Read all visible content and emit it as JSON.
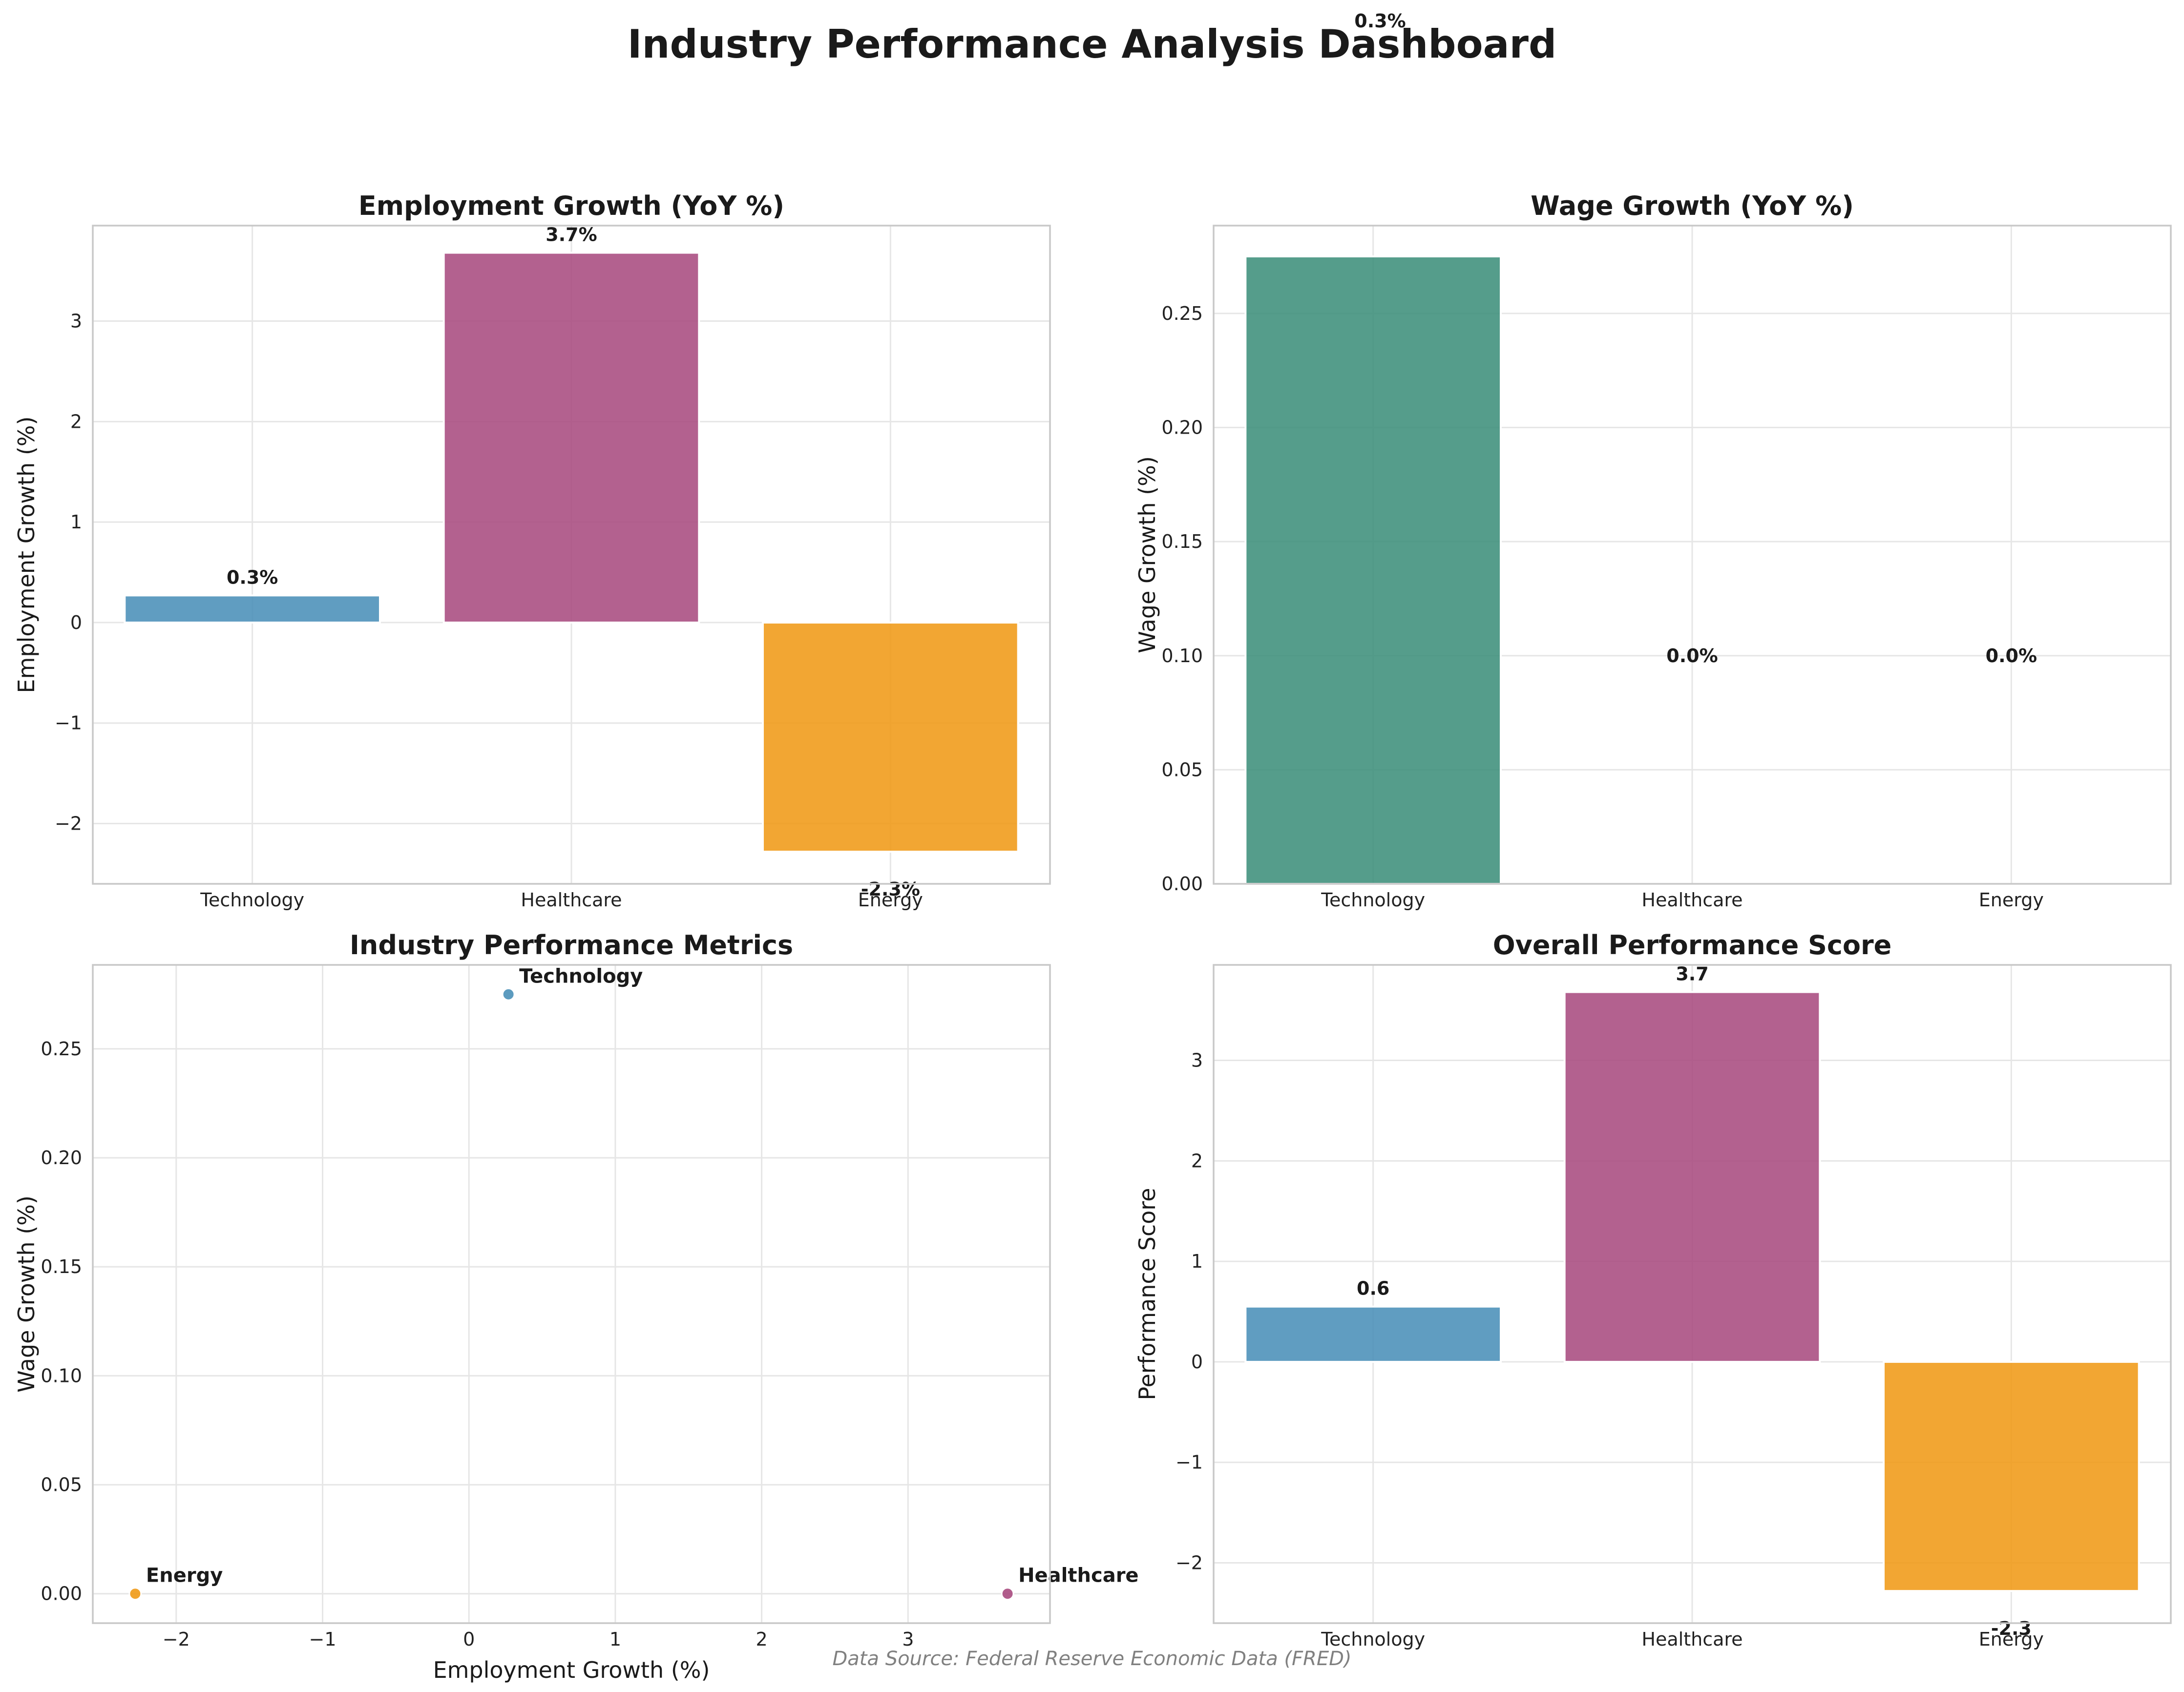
{
  "figure": {
    "title": "Industry Performance Analysis Dashboard",
    "source_note": "Data Source: Federal Reserve Economic Data (FRED)",
    "stray_label": "0.3%"
  },
  "colors": {
    "Technology": "#4a90b8",
    "Healthcare": "#a84b7f",
    "Energy": "#f09a17",
    "wage_bar": "#3e8f7b"
  },
  "chart_data": [
    {
      "id": "employment",
      "type": "bar",
      "title": "Employment Growth (YoY %)",
      "xlabel": "",
      "ylabel": "Employment Growth (%)",
      "categories": [
        "Technology",
        "Healthcare",
        "Energy"
      ],
      "values": [
        0.27,
        3.68,
        -2.28
      ],
      "value_labels": [
        "0.3%",
        "3.7%",
        "-2.3%"
      ],
      "ylim": [
        -2.6,
        3.95
      ],
      "yticks": [
        -2,
        -1,
        0,
        1,
        2,
        3
      ],
      "ytick_labels": [
        "−2",
        "−1",
        "0",
        "1",
        "2",
        "3"
      ],
      "grid": true
    },
    {
      "id": "wage",
      "type": "bar",
      "title": "Wage Growth (YoY %)",
      "xlabel": "",
      "ylabel": "Wage Growth (%)",
      "categories": [
        "Technology",
        "Healthcare",
        "Energy"
      ],
      "values": [
        0.275,
        0.0,
        0.0
      ],
      "value_labels": [
        "0.3%",
        "0.0%",
        "0.0%"
      ],
      "ylim": [
        0,
        0.2885
      ],
      "yticks": [
        0,
        0.05,
        0.1,
        0.15,
        0.2,
        0.25
      ],
      "ytick_labels": [
        "0.00",
        "0.05",
        "0.10",
        "0.15",
        "0.20",
        "0.25"
      ],
      "grid": true
    },
    {
      "id": "metrics",
      "type": "scatter",
      "title": "Industry Performance Metrics",
      "xlabel": "Employment Growth (%)",
      "ylabel": "Wage Growth (%)",
      "points": [
        {
          "label": "Technology",
          "x": 0.27,
          "y": 0.275
        },
        {
          "label": "Healthcare",
          "x": 3.68,
          "y": 0.0
        },
        {
          "label": "Energy",
          "x": -2.28,
          "y": 0.0
        }
      ],
      "xlim": [
        -2.57,
        3.97
      ],
      "ylim": [
        -0.0135,
        0.2885
      ],
      "xticks": [
        -2,
        -1,
        0,
        1,
        2,
        3
      ],
      "xtick_labels": [
        "−2",
        "−1",
        "0",
        "1",
        "2",
        "3"
      ],
      "yticks": [
        0,
        0.05,
        0.1,
        0.15,
        0.2,
        0.25
      ],
      "ytick_labels": [
        "0.00",
        "0.05",
        "0.10",
        "0.15",
        "0.20",
        "0.25"
      ],
      "grid": true
    },
    {
      "id": "score",
      "type": "bar",
      "title": "Overall Performance Score",
      "xlabel": "",
      "ylabel": "Performance Score",
      "categories": [
        "Technology",
        "Healthcare",
        "Energy"
      ],
      "values": [
        0.55,
        3.68,
        -2.28
      ],
      "value_labels": [
        "0.6",
        "3.7",
        "-2.3"
      ],
      "ylim": [
        -2.6,
        3.95
      ],
      "yticks": [
        -2,
        -1,
        0,
        1,
        2,
        3
      ],
      "ytick_labels": [
        "−2",
        "−1",
        "0",
        "1",
        "2",
        "3"
      ],
      "grid": true
    }
  ]
}
